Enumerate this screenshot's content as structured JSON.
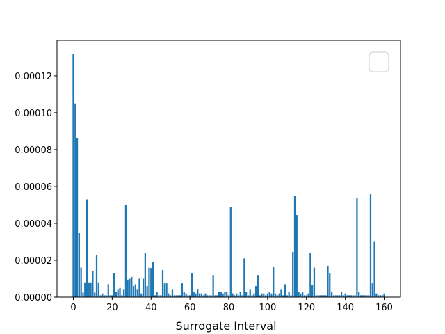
{
  "chart_data": {
    "type": "bar",
    "xlabel": "Surrogate Interval",
    "color": "#1f77b4",
    "bar_width": 0.8,
    "x": [
      0,
      1,
      2,
      3,
      4,
      5,
      6,
      7,
      8,
      9,
      10,
      11,
      12,
      13,
      14,
      15,
      16,
      17,
      18,
      19,
      20,
      21,
      22,
      23,
      24,
      25,
      26,
      27,
      28,
      29,
      30,
      31,
      32,
      33,
      34,
      35,
      36,
      37,
      38,
      39,
      40,
      41,
      42,
      43,
      44,
      45,
      46,
      47,
      48,
      49,
      50,
      51,
      52,
      53,
      54,
      55,
      56,
      57,
      58,
      59,
      60,
      61,
      62,
      63,
      64,
      65,
      66,
      67,
      68,
      69,
      70,
      71,
      72,
      73,
      74,
      75,
      76,
      77,
      78,
      79,
      80,
      81,
      82,
      83,
      84,
      85,
      86,
      87,
      88,
      89,
      90,
      91,
      92,
      93,
      94,
      95,
      96,
      97,
      98,
      99,
      100,
      101,
      102,
      103,
      104,
      105,
      106,
      107,
      108,
      109,
      110,
      111,
      112,
      113,
      114,
      115,
      116,
      117,
      118,
      119,
      120,
      121,
      122,
      123,
      124,
      125,
      126,
      127,
      128,
      129,
      130,
      131,
      132,
      133,
      134,
      135,
      136,
      137,
      138,
      139,
      140,
      141,
      142,
      143,
      144,
      145,
      146,
      147,
      148,
      149,
      150,
      151,
      152,
      153,
      154,
      155,
      156,
      157,
      158,
      159,
      160
    ],
    "values": [
      0.000132,
      0.000105,
      8.6e-05,
      3.47e-05,
      1.6e-05,
      2.5e-06,
      8e-06,
      5.3e-05,
      8e-06,
      8e-06,
      1.4e-05,
      2.5e-06,
      2.3e-05,
      8e-06,
      1e-06,
      2e-06,
      1e-06,
      1e-06,
      7e-06,
      1e-06,
      1e-06,
      1.3e-05,
      3e-06,
      4e-06,
      5e-06,
      1e-06,
      4e-06,
      4.98e-05,
      9.5e-06,
      1e-05,
      1.1e-05,
      6e-06,
      7e-06,
      4e-06,
      1e-05,
      2e-06,
      1e-05,
      2.4e-05,
      6e-06,
      1.6e-05,
      1.58e-05,
      1.9e-05,
      1e-06,
      3e-06,
      1e-06,
      1e-06,
      1.47e-05,
      7.5e-06,
      7.5e-06,
      2e-06,
      1e-06,
      4e-06,
      1e-06,
      1e-06,
      1e-06,
      1e-06,
      7.5e-06,
      3e-06,
      2e-06,
      1e-06,
      1e-06,
      1.28e-05,
      3e-06,
      2e-06,
      4.5e-06,
      2e-06,
      2e-06,
      1e-06,
      2e-06,
      1e-06,
      1e-06,
      1e-06,
      1.2e-05,
      1e-06,
      1e-06,
      3e-06,
      3e-06,
      2e-06,
      3e-06,
      3e-06,
      1e-06,
      4.87e-05,
      2e-06,
      1e-06,
      2e-06,
      1e-06,
      3e-06,
      1e-06,
      2.1e-05,
      3e-06,
      1e-06,
      4e-06,
      1e-06,
      2e-06,
      6e-06,
      1.2e-05,
      1e-06,
      2e-06,
      2e-06,
      1e-06,
      2e-06,
      3e-06,
      2e-06,
      1.65e-05,
      2e-06,
      1e-06,
      2e-06,
      4e-06,
      1e-06,
      7e-06,
      1e-06,
      3e-06,
      1e-06,
      2.45e-05,
      5.47e-05,
      4.45e-05,
      3e-06,
      2e-06,
      3e-06,
      1e-06,
      1e-06,
      2e-06,
      2.38e-05,
      6.4e-06,
      1.6e-05,
      1e-06,
      1e-06,
      1e-06,
      1e-06,
      1e-06,
      1e-06,
      1.7e-05,
      1.28e-05,
      3e-06,
      1e-06,
      1e-06,
      1e-06,
      1e-06,
      3e-06,
      1e-06,
      2e-06,
      1e-06,
      1e-06,
      1e-06,
      1e-06,
      1e-06,
      5.36e-05,
      3e-06,
      1e-06,
      1e-06,
      1e-06,
      1e-06,
      1e-06,
      5.58e-05,
      7.5e-06,
      3e-05,
      2e-06,
      1e-06,
      1e-06,
      1e-06,
      2e-06
    ],
    "xlim": [
      -8.4,
      168.4
    ],
    "xticks": [
      0,
      20,
      40,
      60,
      80,
      100,
      120,
      140,
      160
    ],
    "ylim": [
      0,
      0.0001392
    ],
    "yticks": [
      {
        "value": 0,
        "label": "0.00000"
      },
      {
        "value": 2e-05,
        "label": "0.00002"
      },
      {
        "value": 4e-05,
        "label": "0.00004"
      },
      {
        "value": 6e-05,
        "label": "0.00006"
      },
      {
        "value": 8e-05,
        "label": "0.00008"
      },
      {
        "value": 0.0001,
        "label": "0.00010"
      },
      {
        "value": 0.00012,
        "label": "0.00012"
      }
    ]
  }
}
